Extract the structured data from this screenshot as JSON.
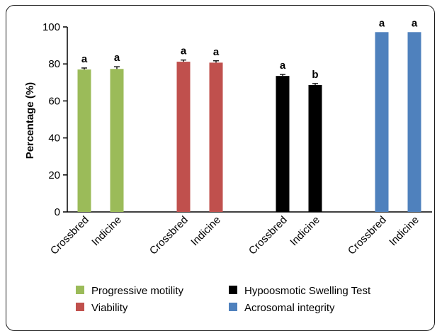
{
  "chart_data": {
    "type": "bar",
    "ylabel": "Percentage (%)",
    "xlabel": "",
    "title": "",
    "ylim": [
      0,
      100
    ],
    "yticks": [
      0,
      20,
      40,
      60,
      80,
      100
    ],
    "grid": false,
    "legend_position": "bottom",
    "groups": [
      {
        "series": "Progressive motility",
        "color": "#9bbb59",
        "bars": [
          {
            "category": "Crossbred",
            "value": 77,
            "error": 0.8,
            "sig": "a"
          },
          {
            "category": "Indicine",
            "value": 77.3,
            "error": 1.2,
            "sig": "a"
          }
        ]
      },
      {
        "series": "Viability",
        "color": "#c0504d",
        "bars": [
          {
            "category": "Crossbred",
            "value": 81.2,
            "error": 0.9,
            "sig": "a"
          },
          {
            "category": "Indicine",
            "value": 80.7,
            "error": 1.0,
            "sig": "a"
          }
        ]
      },
      {
        "series": "Hypoosmotic Swelling Test",
        "color": "#000000",
        "bars": [
          {
            "category": "Crossbred",
            "value": 73.5,
            "error": 0.8,
            "sig": "a"
          },
          {
            "category": "Indicine",
            "value": 68.6,
            "error": 0.8,
            "sig": "b"
          }
        ]
      },
      {
        "series": "Acrosomal integrity",
        "color": "#4f81bd",
        "bars": [
          {
            "category": "Crossbred",
            "value": 97.2,
            "error": 0,
            "sig": "a"
          },
          {
            "category": "Indicine",
            "value": 97.2,
            "error": 0,
            "sig": "a"
          }
        ]
      }
    ],
    "legend": [
      {
        "label": "Progressive motility",
        "color": "#9bbb59"
      },
      {
        "label": "Hypoosmotic Swelling Test",
        "color": "#000000"
      },
      {
        "label": "Viability",
        "color": "#c0504d"
      },
      {
        "label": "Acrosomal integrity",
        "color": "#4f81bd"
      }
    ]
  }
}
